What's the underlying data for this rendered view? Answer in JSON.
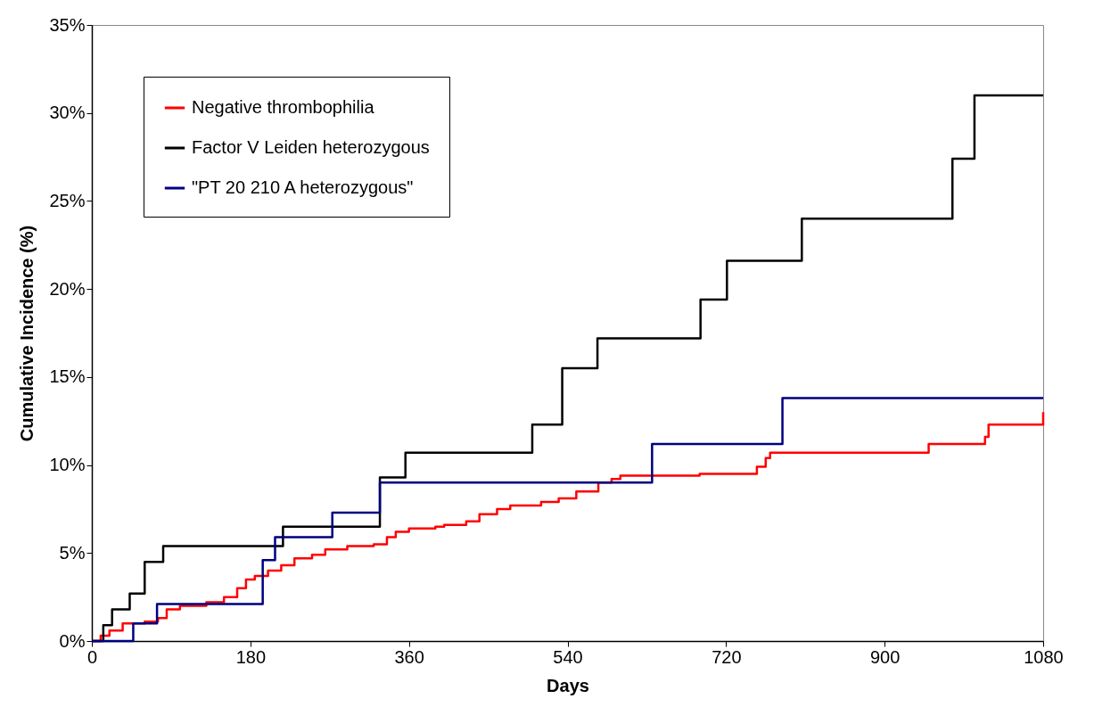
{
  "chart_data": {
    "type": "step",
    "xlabel": "Days",
    "ylabel": "Cumulative Incidence (%)",
    "xlim": [
      0,
      1080
    ],
    "xticks": [
      0,
      180,
      360,
      540,
      720,
      900,
      1080
    ],
    "ylim": [
      0,
      35
    ],
    "yticks": [
      {
        "value": 0,
        "label": "0%"
      },
      {
        "value": 5,
        "label": "5%"
      },
      {
        "value": 10,
        "label": "10%"
      },
      {
        "value": 15,
        "label": "15%"
      },
      {
        "value": 20,
        "label": "20%"
      },
      {
        "value": 25,
        "label": "25%"
      },
      {
        "value": 30,
        "label": "30%"
      },
      {
        "value": 35,
        "label": "35%"
      }
    ],
    "grid": false,
    "legend": "top left",
    "line_style": "solid",
    "marker": "none",
    "series": [
      {
        "name": "Negative thrombophilia",
        "color": "#ff0000",
        "x": [
          0,
          10,
          20,
          35,
          60,
          75,
          85,
          100,
          130,
          150,
          165,
          175,
          185,
          200,
          215,
          230,
          250,
          265,
          290,
          320,
          335,
          345,
          360,
          390,
          400,
          425,
          440,
          460,
          475,
          510,
          530,
          550,
          575,
          590,
          600,
          690,
          750,
          755,
          765,
          770,
          945,
          950,
          1010,
          1014,
          1018,
          1078,
          1080
        ],
        "values": [
          0,
          0.3,
          0.6,
          1.0,
          1.1,
          1.3,
          1.8,
          2.0,
          2.2,
          2.5,
          3.0,
          3.5,
          3.7,
          4.0,
          4.3,
          4.7,
          4.9,
          5.2,
          5.4,
          5.5,
          5.9,
          6.2,
          6.4,
          6.5,
          6.6,
          6.8,
          7.2,
          7.5,
          7.7,
          7.9,
          8.1,
          8.5,
          9.0,
          9.2,
          9.4,
          9.5,
          9.5,
          9.9,
          10.4,
          10.7,
          10.7,
          11.2,
          11.2,
          11.6,
          12.3,
          12.3,
          13.0
        ]
      },
      {
        "name": "Factor V Leiden heterozygous",
        "color": "#000000",
        "x": [
          0,
          13,
          23,
          43,
          60,
          81,
          217,
          327,
          356,
          500,
          534,
          574,
          691,
          721,
          806,
          977,
          1002,
          1080
        ],
        "values": [
          0,
          0.9,
          1.8,
          2.7,
          4.5,
          5.4,
          6.5,
          9.3,
          10.7,
          12.3,
          15.5,
          17.2,
          19.4,
          21.6,
          24.0,
          27.4,
          31.0,
          31.0
        ]
      },
      {
        "name": "\"PT 20 210 A heterozygous\"",
        "color": "#000080",
        "x": [
          0,
          47,
          74,
          194,
          208,
          273,
          327,
          636,
          784,
          1080
        ],
        "values": [
          0,
          1.0,
          2.1,
          4.6,
          5.9,
          7.3,
          9.0,
          11.2,
          13.8,
          13.8
        ]
      }
    ]
  }
}
